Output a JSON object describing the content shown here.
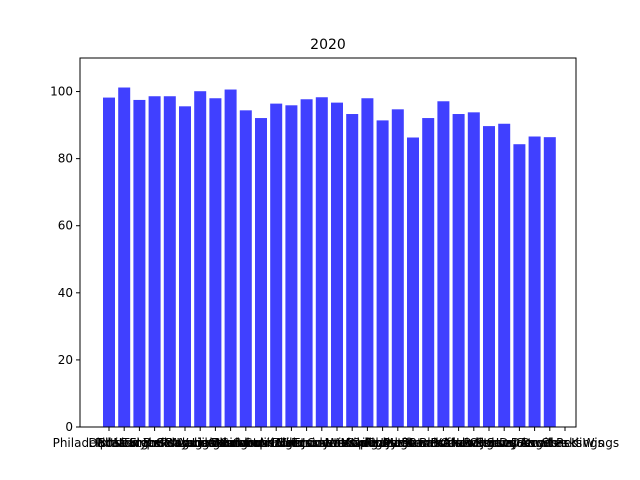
{
  "chart_data": {
    "type": "bar",
    "title": "2020",
    "xlabel": "",
    "ylabel": "",
    "ylim": [
      0,
      110
    ],
    "yticks": [
      0,
      20,
      40,
      60,
      80,
      100
    ],
    "grid": false,
    "bar_color": "#4040ff",
    "categories": [
      "Philadelphia Flyers",
      "Dallas Stars",
      "Boston Bruins",
      "Pittsburgh Penguins",
      "New York Islanders",
      "Tampa Bay Lightning",
      "St. Louis Blues",
      "Colorado Avalanche",
      "Washington Capitals",
      "Vegas Golden Knights",
      "Edmonton Oilers",
      "Columbus Blue Jackets",
      "Carolina Hurricanes",
      "Arizona Coyotes",
      "Minnesota Wild",
      "Vancouver Canucks",
      "Toronto Maple Leafs",
      "Winnipeg Jets",
      "Nashville Predators",
      "Calgary Flames",
      "Florida Panthers",
      "Chicago Blackhawks",
      "Montreal Canadiens",
      "New York Rangers",
      "Buffalo Sabres",
      "Anaheim Ducks",
      "New Jersey Devils",
      "Ottawa Senators",
      "San Jose Sharks",
      "Los Angeles Kings",
      "Detroit Red Wings"
    ],
    "values": [
      98.2,
      101.2,
      97.5,
      98.6,
      98.6,
      95.6,
      100.1,
      98.0,
      100.6,
      94.4,
      92.1,
      96.4,
      95.9,
      97.7,
      98.3,
      96.7,
      93.3,
      98.0,
      91.4,
      94.7,
      86.3,
      92.1,
      97.1,
      93.3,
      93.8,
      89.7,
      90.4,
      84.3,
      86.6,
      86.4,
      0
    ]
  }
}
